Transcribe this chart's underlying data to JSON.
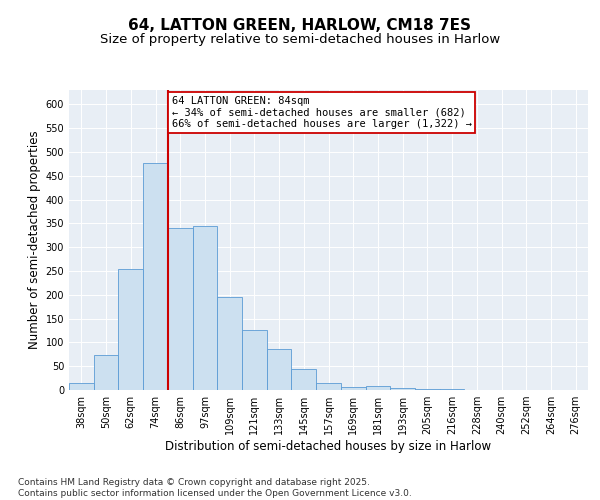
{
  "title1": "64, LATTON GREEN, HARLOW, CM18 7ES",
  "title2": "Size of property relative to semi-detached houses in Harlow",
  "xlabel": "Distribution of semi-detached houses by size in Harlow",
  "ylabel": "Number of semi-detached properties",
  "categories": [
    "38sqm",
    "50sqm",
    "62sqm",
    "74sqm",
    "86sqm",
    "97sqm",
    "109sqm",
    "121sqm",
    "133sqm",
    "145sqm",
    "157sqm",
    "169sqm",
    "181sqm",
    "193sqm",
    "205sqm",
    "216sqm",
    "228sqm",
    "240sqm",
    "252sqm",
    "264sqm",
    "276sqm"
  ],
  "bar_heights": [
    15,
    73,
    255,
    477,
    340,
    345,
    196,
    125,
    87,
    45,
    15,
    7,
    9,
    5,
    3,
    2,
    1,
    1,
    1,
    1,
    1
  ],
  "bar_color": "#cce0f0",
  "bar_edge_color": "#5b9bd5",
  "vline_color": "#cc0000",
  "annotation_text": "64 LATTON GREEN: 84sqm\n← 34% of semi-detached houses are smaller (682)\n66% of semi-detached houses are larger (1,322) →",
  "annotation_box_color": "#ffffff",
  "annotation_box_edge": "#cc0000",
  "ylim": [
    0,
    630
  ],
  "yticks": [
    0,
    50,
    100,
    150,
    200,
    250,
    300,
    350,
    400,
    450,
    500,
    550,
    600
  ],
  "background_color": "#e8eef5",
  "footer": "Contains HM Land Registry data © Crown copyright and database right 2025.\nContains public sector information licensed under the Open Government Licence v3.0.",
  "title_fontsize": 11,
  "subtitle_fontsize": 9.5,
  "axis_label_fontsize": 8.5,
  "tick_fontsize": 7,
  "footer_fontsize": 6.5,
  "annotation_fontsize": 7.5
}
